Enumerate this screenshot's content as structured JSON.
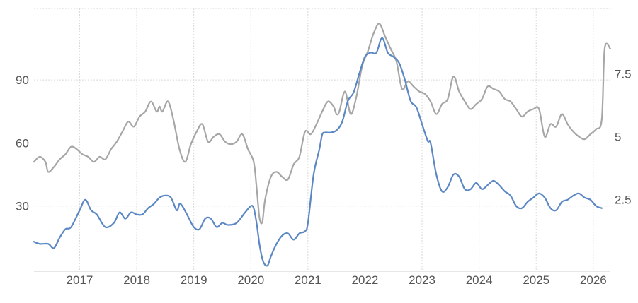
{
  "chart_data": {
    "type": "line",
    "title": "",
    "xlabel": "",
    "ylabel_left": "",
    "ylabel_right": "",
    "x_ticks": [
      "2017",
      "2018",
      "2019",
      "2020",
      "2021",
      "2022",
      "2023",
      "2024",
      "2025",
      "2026"
    ],
    "x_range": [
      2016.2,
      2026.3
    ],
    "y_left": {
      "ticks": [
        "30",
        "60",
        "90"
      ],
      "range": [
        -1,
        124
      ]
    },
    "y_right": {
      "ticks": [
        "2.5",
        "5",
        "7.5"
      ],
      "range": [
        -0.35,
        10.1
      ]
    },
    "grid": true,
    "legend": "none",
    "series": [
      {
        "axis": "left",
        "color": "#5b87c4",
        "x": [
          2016.2,
          2016.3,
          2016.45,
          2016.55,
          2016.65,
          2016.75,
          2016.85,
          2017.0,
          2017.1,
          2017.2,
          2017.3,
          2017.45,
          2017.6,
          2017.7,
          2017.8,
          2017.9,
          2018.0,
          2018.1,
          2018.2,
          2018.3,
          2018.4,
          2018.5,
          2018.6,
          2018.7,
          2018.75,
          2018.8,
          2018.9,
          2019.0,
          2019.1,
          2019.2,
          2019.3,
          2019.4,
          2019.5,
          2019.6,
          2019.75,
          2019.9,
          2020.0,
          2020.05,
          2020.1,
          2020.15,
          2020.2,
          2020.25,
          2020.3,
          2020.35,
          2020.45,
          2020.55,
          2020.65,
          2020.75,
          2020.85,
          2020.95,
          2021.0,
          2021.1,
          2021.2,
          2021.25,
          2021.3,
          2021.4,
          2021.5,
          2021.6,
          2021.7,
          2021.8,
          2021.9,
          2022.0,
          2022.1,
          2022.2,
          2022.3,
          2022.4,
          2022.5,
          2022.6,
          2022.7,
          2022.8,
          2022.9,
          2023.0,
          2023.1,
          2023.15,
          2023.25,
          2023.35,
          2023.45,
          2023.55,
          2023.65,
          2023.75,
          2023.85,
          2023.95,
          2024.05,
          2024.15,
          2024.25,
          2024.35,
          2024.45,
          2024.55,
          2024.65,
          2024.75,
          2024.85,
          2024.95,
          2025.05,
          2025.15,
          2025.25,
          2025.35,
          2025.45,
          2025.55,
          2025.65,
          2025.75,
          2025.85,
          2025.95,
          2026.05,
          2026.15
        ],
        "y": [
          13,
          12,
          12,
          10,
          15,
          19,
          20,
          28,
          33,
          28,
          26,
          20,
          22,
          27,
          24,
          27,
          26,
          26,
          29,
          31,
          34,
          35,
          34,
          28,
          31,
          30,
          25,
          20,
          19,
          24,
          24,
          20,
          22,
          21,
          22,
          27,
          30,
          29,
          22,
          12,
          5,
          2,
          2,
          6,
          12,
          16,
          17,
          14,
          17,
          18,
          22,
          45,
          57,
          64,
          65,
          65,
          66,
          70,
          80,
          84,
          93,
          101,
          103,
          103,
          110,
          103,
          101,
          98,
          90,
          80,
          77,
          69,
          61,
          60,
          45,
          37,
          39,
          45,
          44,
          38,
          38,
          41,
          38,
          40,
          42,
          40,
          37,
          35,
          30,
          29,
          32,
          34,
          36,
          34,
          29,
          28,
          32,
          33,
          35,
          36,
          34,
          33,
          30,
          29
        ]
      },
      {
        "axis": "right",
        "color": "#a6a6a6",
        "x": [
          2016.2,
          2016.3,
          2016.4,
          2016.45,
          2016.55,
          2016.65,
          2016.75,
          2016.85,
          2016.95,
          2017.05,
          2017.15,
          2017.25,
          2017.35,
          2017.45,
          2017.55,
          2017.65,
          2017.75,
          2017.85,
          2017.95,
          2018.05,
          2018.15,
          2018.25,
          2018.35,
          2018.4,
          2018.45,
          2018.55,
          2018.65,
          2018.75,
          2018.85,
          2018.95,
          2019.05,
          2019.15,
          2019.25,
          2019.35,
          2019.45,
          2019.55,
          2019.65,
          2019.75,
          2019.85,
          2019.95,
          2020.05,
          2020.1,
          2020.15,
          2020.2,
          2020.25,
          2020.35,
          2020.45,
          2020.55,
          2020.65,
          2020.75,
          2020.85,
          2020.95,
          2021.05,
          2021.15,
          2021.25,
          2021.35,
          2021.45,
          2021.5,
          2021.55,
          2021.65,
          2021.75,
          2021.85,
          2021.95,
          2022.05,
          2022.15,
          2022.25,
          2022.35,
          2022.45,
          2022.55,
          2022.65,
          2022.75,
          2022.85,
          2022.95,
          2023.05,
          2023.15,
          2023.25,
          2023.35,
          2023.45,
          2023.55,
          2023.65,
          2023.75,
          2023.85,
          2023.95,
          2024.05,
          2024.15,
          2024.25,
          2024.35,
          2024.45,
          2024.55,
          2024.65,
          2024.75,
          2024.85,
          2024.95,
          2025.05,
          2025.15,
          2025.25,
          2025.35,
          2025.45,
          2025.55,
          2025.65,
          2025.75,
          2025.85,
          2025.95,
          2026.05,
          2026.15,
          2026.2,
          2026.3
        ],
        "y": [
          4.0,
          4.2,
          4.0,
          3.6,
          3.8,
          4.1,
          4.3,
          4.6,
          4.5,
          4.3,
          4.2,
          4.0,
          4.2,
          4.1,
          4.5,
          4.8,
          5.2,
          5.6,
          5.4,
          5.8,
          6.0,
          6.4,
          6.0,
          6.2,
          6.0,
          6.4,
          5.6,
          4.5,
          4.0,
          4.7,
          5.2,
          5.5,
          4.8,
          5.0,
          5.1,
          4.8,
          4.7,
          4.8,
          5.1,
          4.5,
          4.0,
          3.0,
          1.8,
          1.6,
          2.5,
          3.4,
          3.6,
          3.4,
          3.3,
          3.9,
          4.2,
          5.2,
          5.1,
          5.5,
          6.0,
          6.4,
          6.2,
          5.9,
          6.0,
          6.8,
          5.9,
          6.6,
          7.8,
          8.4,
          9.1,
          9.5,
          9.0,
          8.5,
          8.0,
          6.9,
          7.2,
          7.0,
          6.8,
          6.7,
          6.4,
          5.9,
          6.3,
          6.5,
          7.4,
          6.8,
          6.4,
          6.1,
          6.3,
          6.5,
          7.0,
          6.9,
          6.8,
          6.5,
          6.4,
          6.1,
          5.8,
          6.0,
          6.1,
          6.1,
          5.0,
          5.5,
          5.4,
          5.9,
          5.5,
          5.2,
          5.0,
          4.9,
          5.1,
          5.3,
          5.7,
          8.5,
          8.5
        ]
      }
    ]
  }
}
